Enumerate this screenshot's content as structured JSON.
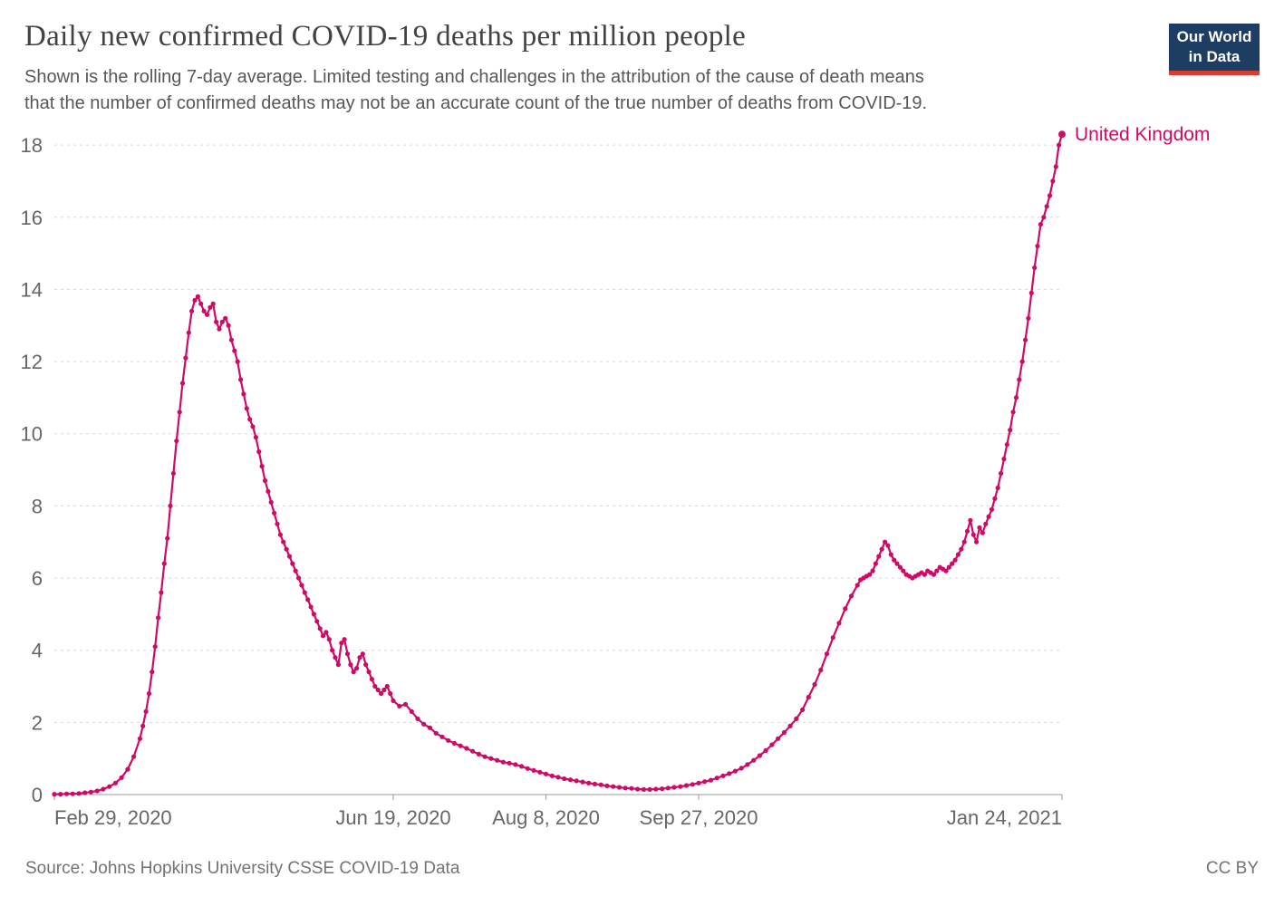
{
  "header": {
    "title": "Daily new confirmed COVID-19 deaths per million people",
    "subtitle_lines": [
      "Shown is the rolling 7-day average. Limited testing and challenges in the attribution of the cause of death means",
      "that the number of confirmed deaths may not be an accurate count of the true number of deaths from COVID-19."
    ],
    "logo": {
      "line1": "Our World",
      "line2": "in Data"
    }
  },
  "footer": {
    "source": "Source: Johns Hopkins University CSSE COVID-19 Data",
    "license": "CC BY"
  },
  "colors": {
    "series": "#cf0a66",
    "grid": "#d8d8d8",
    "axis": "#999999",
    "tick_text": "#666666",
    "logo_bg": "#1d3d63",
    "logo_stripe": "#d73c2e"
  },
  "chart_data": {
    "type": "line",
    "title": "Daily new confirmed COVID-19 deaths per million people",
    "xlabel": "",
    "ylabel": "",
    "x_range": [
      "2020-02-29",
      "2021-01-24"
    ],
    "ylim": [
      0,
      18.6
    ],
    "yticks": [
      0,
      2,
      4,
      6,
      8,
      10,
      12,
      14,
      16,
      18
    ],
    "xticks": [
      {
        "date": "2020-02-29",
        "label": "Feb 29, 2020",
        "anchor": "start"
      },
      {
        "date": "2020-06-19",
        "label": "Jun 19, 2020",
        "anchor": "middle"
      },
      {
        "date": "2020-08-08",
        "label": "Aug 8, 2020",
        "anchor": "middle"
      },
      {
        "date": "2020-09-27",
        "label": "Sep 27, 2020",
        "anchor": "middle"
      },
      {
        "date": "2021-01-24",
        "label": "Jan 24, 2021",
        "anchor": "end"
      }
    ],
    "grid": "horizontal-dashed",
    "end_label": "United Kingdom",
    "series": [
      {
        "name": "United Kingdom",
        "color": "#cf0a66",
        "points": [
          [
            "2020-02-29",
            0.01
          ],
          [
            "2020-03-02",
            0.01
          ],
          [
            "2020-03-04",
            0.02
          ],
          [
            "2020-03-06",
            0.02
          ],
          [
            "2020-03-08",
            0.03
          ],
          [
            "2020-03-10",
            0.05
          ],
          [
            "2020-03-12",
            0.07
          ],
          [
            "2020-03-14",
            0.1
          ],
          [
            "2020-03-16",
            0.15
          ],
          [
            "2020-03-18",
            0.22
          ],
          [
            "2020-03-20",
            0.32
          ],
          [
            "2020-03-22",
            0.47
          ],
          [
            "2020-03-24",
            0.7
          ],
          [
            "2020-03-26",
            1.05
          ],
          [
            "2020-03-28",
            1.55
          ],
          [
            "2020-03-29",
            1.9
          ],
          [
            "2020-03-30",
            2.3
          ],
          [
            "2020-03-31",
            2.8
          ],
          [
            "2020-04-01",
            3.4
          ],
          [
            "2020-04-02",
            4.1
          ],
          [
            "2020-04-03",
            4.9
          ],
          [
            "2020-04-04",
            5.6
          ],
          [
            "2020-04-05",
            6.4
          ],
          [
            "2020-04-06",
            7.1
          ],
          [
            "2020-04-07",
            8.0
          ],
          [
            "2020-04-08",
            8.9
          ],
          [
            "2020-04-09",
            9.8
          ],
          [
            "2020-04-10",
            10.6
          ],
          [
            "2020-04-11",
            11.4
          ],
          [
            "2020-04-12",
            12.1
          ],
          [
            "2020-04-13",
            12.8
          ],
          [
            "2020-04-14",
            13.4
          ],
          [
            "2020-04-15",
            13.7
          ],
          [
            "2020-04-16",
            13.8
          ],
          [
            "2020-04-17",
            13.6
          ],
          [
            "2020-04-18",
            13.4
          ],
          [
            "2020-04-19",
            13.3
          ],
          [
            "2020-04-20",
            13.5
          ],
          [
            "2020-04-21",
            13.6
          ],
          [
            "2020-04-22",
            13.1
          ],
          [
            "2020-04-23",
            12.9
          ],
          [
            "2020-04-24",
            13.1
          ],
          [
            "2020-04-25",
            13.2
          ],
          [
            "2020-04-26",
            13.0
          ],
          [
            "2020-04-27",
            12.6
          ],
          [
            "2020-04-28",
            12.3
          ],
          [
            "2020-04-29",
            12.0
          ],
          [
            "2020-04-30",
            11.5
          ],
          [
            "2020-05-01",
            11.1
          ],
          [
            "2020-05-02",
            10.7
          ],
          [
            "2020-05-03",
            10.4
          ],
          [
            "2020-05-04",
            10.2
          ],
          [
            "2020-05-05",
            9.9
          ],
          [
            "2020-05-06",
            9.5
          ],
          [
            "2020-05-07",
            9.1
          ],
          [
            "2020-05-08",
            8.7
          ],
          [
            "2020-05-09",
            8.4
          ],
          [
            "2020-05-10",
            8.1
          ],
          [
            "2020-05-11",
            7.8
          ],
          [
            "2020-05-12",
            7.5
          ],
          [
            "2020-05-13",
            7.2
          ],
          [
            "2020-05-14",
            7.0
          ],
          [
            "2020-05-15",
            6.8
          ],
          [
            "2020-05-16",
            6.6
          ],
          [
            "2020-05-17",
            6.4
          ],
          [
            "2020-05-18",
            6.2
          ],
          [
            "2020-05-19",
            6.0
          ],
          [
            "2020-05-20",
            5.8
          ],
          [
            "2020-05-21",
            5.6
          ],
          [
            "2020-05-22",
            5.4
          ],
          [
            "2020-05-23",
            5.2
          ],
          [
            "2020-05-24",
            5.0
          ],
          [
            "2020-05-25",
            4.8
          ],
          [
            "2020-05-26",
            4.6
          ],
          [
            "2020-05-27",
            4.4
          ],
          [
            "2020-05-28",
            4.5
          ],
          [
            "2020-05-29",
            4.3
          ],
          [
            "2020-05-30",
            4.0
          ],
          [
            "2020-05-31",
            3.8
          ],
          [
            "2020-06-01",
            3.6
          ],
          [
            "2020-06-02",
            4.2
          ],
          [
            "2020-06-03",
            4.3
          ],
          [
            "2020-06-04",
            3.9
          ],
          [
            "2020-06-05",
            3.6
          ],
          [
            "2020-06-06",
            3.4
          ],
          [
            "2020-06-07",
            3.5
          ],
          [
            "2020-06-08",
            3.8
          ],
          [
            "2020-06-09",
            3.9
          ],
          [
            "2020-06-10",
            3.6
          ],
          [
            "2020-06-11",
            3.4
          ],
          [
            "2020-06-12",
            3.2
          ],
          [
            "2020-06-13",
            3.0
          ],
          [
            "2020-06-14",
            2.9
          ],
          [
            "2020-06-15",
            2.8
          ],
          [
            "2020-06-16",
            2.9
          ],
          [
            "2020-06-17",
            3.0
          ],
          [
            "2020-06-18",
            2.8
          ],
          [
            "2020-06-19",
            2.6
          ],
          [
            "2020-06-21",
            2.45
          ],
          [
            "2020-06-23",
            2.5
          ],
          [
            "2020-06-25",
            2.3
          ],
          [
            "2020-06-27",
            2.1
          ],
          [
            "2020-06-29",
            1.95
          ],
          [
            "2020-07-01",
            1.85
          ],
          [
            "2020-07-03",
            1.7
          ],
          [
            "2020-07-05",
            1.6
          ],
          [
            "2020-07-07",
            1.5
          ],
          [
            "2020-07-09",
            1.42
          ],
          [
            "2020-07-11",
            1.35
          ],
          [
            "2020-07-13",
            1.28
          ],
          [
            "2020-07-15",
            1.2
          ],
          [
            "2020-07-17",
            1.12
          ],
          [
            "2020-07-19",
            1.05
          ],
          [
            "2020-07-21",
            1.0
          ],
          [
            "2020-07-23",
            0.95
          ],
          [
            "2020-07-25",
            0.9
          ],
          [
            "2020-07-27",
            0.87
          ],
          [
            "2020-07-29",
            0.83
          ],
          [
            "2020-07-31",
            0.78
          ],
          [
            "2020-08-02",
            0.72
          ],
          [
            "2020-08-04",
            0.67
          ],
          [
            "2020-08-06",
            0.62
          ],
          [
            "2020-08-08",
            0.57
          ],
          [
            "2020-08-10",
            0.52
          ],
          [
            "2020-08-12",
            0.48
          ],
          [
            "2020-08-14",
            0.44
          ],
          [
            "2020-08-16",
            0.41
          ],
          [
            "2020-08-18",
            0.38
          ],
          [
            "2020-08-20",
            0.35
          ],
          [
            "2020-08-22",
            0.32
          ],
          [
            "2020-08-24",
            0.29
          ],
          [
            "2020-08-26",
            0.27
          ],
          [
            "2020-08-28",
            0.24
          ],
          [
            "2020-08-30",
            0.22
          ],
          [
            "2020-09-01",
            0.2
          ],
          [
            "2020-09-03",
            0.18
          ],
          [
            "2020-09-05",
            0.17
          ],
          [
            "2020-09-07",
            0.15
          ],
          [
            "2020-09-09",
            0.14
          ],
          [
            "2020-09-11",
            0.14
          ],
          [
            "2020-09-13",
            0.15
          ],
          [
            "2020-09-15",
            0.16
          ],
          [
            "2020-09-17",
            0.18
          ],
          [
            "2020-09-19",
            0.2
          ],
          [
            "2020-09-21",
            0.22
          ],
          [
            "2020-09-23",
            0.25
          ],
          [
            "2020-09-25",
            0.28
          ],
          [
            "2020-09-27",
            0.32
          ],
          [
            "2020-09-29",
            0.36
          ],
          [
            "2020-10-01",
            0.4
          ],
          [
            "2020-10-03",
            0.46
          ],
          [
            "2020-10-05",
            0.52
          ],
          [
            "2020-10-07",
            0.58
          ],
          [
            "2020-10-09",
            0.65
          ],
          [
            "2020-10-11",
            0.73
          ],
          [
            "2020-10-13",
            0.83
          ],
          [
            "2020-10-15",
            0.95
          ],
          [
            "2020-10-17",
            1.08
          ],
          [
            "2020-10-19",
            1.22
          ],
          [
            "2020-10-21",
            1.38
          ],
          [
            "2020-10-23",
            1.55
          ],
          [
            "2020-10-25",
            1.72
          ],
          [
            "2020-10-27",
            1.9
          ],
          [
            "2020-10-29",
            2.1
          ],
          [
            "2020-10-31",
            2.35
          ],
          [
            "2020-11-02",
            2.7
          ],
          [
            "2020-11-04",
            3.05
          ],
          [
            "2020-11-06",
            3.45
          ],
          [
            "2020-11-08",
            3.9
          ],
          [
            "2020-11-10",
            4.35
          ],
          [
            "2020-11-12",
            4.75
          ],
          [
            "2020-11-14",
            5.15
          ],
          [
            "2020-11-16",
            5.5
          ],
          [
            "2020-11-18",
            5.8
          ],
          [
            "2020-11-19",
            5.95
          ],
          [
            "2020-11-20",
            6.0
          ],
          [
            "2020-11-21",
            6.05
          ],
          [
            "2020-11-22",
            6.1
          ],
          [
            "2020-11-23",
            6.2
          ],
          [
            "2020-11-24",
            6.4
          ],
          [
            "2020-11-25",
            6.6
          ],
          [
            "2020-11-26",
            6.8
          ],
          [
            "2020-11-27",
            7.0
          ],
          [
            "2020-11-28",
            6.9
          ],
          [
            "2020-11-29",
            6.65
          ],
          [
            "2020-11-30",
            6.5
          ],
          [
            "2020-12-01",
            6.4
          ],
          [
            "2020-12-02",
            6.3
          ],
          [
            "2020-12-03",
            6.2
          ],
          [
            "2020-12-04",
            6.1
          ],
          [
            "2020-12-05",
            6.05
          ],
          [
            "2020-12-06",
            6.0
          ],
          [
            "2020-12-07",
            6.05
          ],
          [
            "2020-12-08",
            6.1
          ],
          [
            "2020-12-09",
            6.15
          ],
          [
            "2020-12-10",
            6.1
          ],
          [
            "2020-12-11",
            6.2
          ],
          [
            "2020-12-12",
            6.15
          ],
          [
            "2020-12-13",
            6.1
          ],
          [
            "2020-12-14",
            6.2
          ],
          [
            "2020-12-15",
            6.3
          ],
          [
            "2020-12-16",
            6.25
          ],
          [
            "2020-12-17",
            6.2
          ],
          [
            "2020-12-18",
            6.3
          ],
          [
            "2020-12-19",
            6.4
          ],
          [
            "2020-12-20",
            6.5
          ],
          [
            "2020-12-21",
            6.65
          ],
          [
            "2020-12-22",
            6.8
          ],
          [
            "2020-12-23",
            7.0
          ],
          [
            "2020-12-24",
            7.3
          ],
          [
            "2020-12-25",
            7.6
          ],
          [
            "2020-12-26",
            7.2
          ],
          [
            "2020-12-27",
            7.0
          ],
          [
            "2020-12-28",
            7.4
          ],
          [
            "2020-12-29",
            7.25
          ],
          [
            "2020-12-30",
            7.5
          ],
          [
            "2020-12-31",
            7.7
          ],
          [
            "2021-01-01",
            7.9
          ],
          [
            "2021-01-02",
            8.2
          ],
          [
            "2021-01-03",
            8.5
          ],
          [
            "2021-01-04",
            8.9
          ],
          [
            "2021-01-05",
            9.3
          ],
          [
            "2021-01-06",
            9.7
          ],
          [
            "2021-01-07",
            10.1
          ],
          [
            "2021-01-08",
            10.6
          ],
          [
            "2021-01-09",
            11.0
          ],
          [
            "2021-01-10",
            11.5
          ],
          [
            "2021-01-11",
            12.0
          ],
          [
            "2021-01-12",
            12.6
          ],
          [
            "2021-01-13",
            13.2
          ],
          [
            "2021-01-14",
            13.9
          ],
          [
            "2021-01-15",
            14.6
          ],
          [
            "2021-01-16",
            15.2
          ],
          [
            "2021-01-17",
            15.8
          ],
          [
            "2021-01-18",
            16.0
          ],
          [
            "2021-01-19",
            16.3
          ],
          [
            "2021-01-20",
            16.6
          ],
          [
            "2021-01-21",
            17.0
          ],
          [
            "2021-01-22",
            17.4
          ],
          [
            "2021-01-23",
            18.0
          ],
          [
            "2021-01-24",
            18.3
          ]
        ]
      }
    ]
  }
}
